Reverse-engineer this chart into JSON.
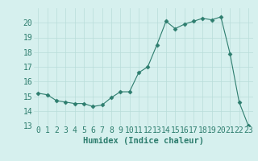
{
  "x": [
    0,
    1,
    2,
    3,
    4,
    5,
    6,
    7,
    8,
    9,
    10,
    11,
    12,
    13,
    14,
    15,
    16,
    17,
    18,
    19,
    20,
    21,
    22,
    23
  ],
  "y": [
    15.2,
    15.1,
    14.7,
    14.6,
    14.5,
    14.5,
    14.3,
    14.4,
    14.9,
    15.3,
    15.3,
    16.6,
    17.0,
    18.5,
    20.1,
    19.6,
    19.9,
    20.1,
    20.3,
    20.2,
    20.4,
    17.9,
    14.6,
    13.0
  ],
  "xlabel": "Humidex (Indice chaleur)",
  "ylim": [
    13,
    21
  ],
  "xlim": [
    -0.5,
    23.5
  ],
  "yticks": [
    13,
    14,
    15,
    16,
    17,
    18,
    19,
    20
  ],
  "xticks": [
    0,
    1,
    2,
    3,
    4,
    5,
    6,
    7,
    8,
    9,
    10,
    11,
    12,
    13,
    14,
    15,
    16,
    17,
    18,
    19,
    20,
    21,
    22,
    23
  ],
  "line_color": "#2d7d6e",
  "marker": "D",
  "marker_size": 2.5,
  "bg_color": "#d6f0ee",
  "grid_color": "#b8ddd9",
  "tick_color": "#2d7d6e",
  "label_color": "#2d7d6e",
  "xlabel_fontsize": 7.5,
  "tick_fontsize": 7
}
